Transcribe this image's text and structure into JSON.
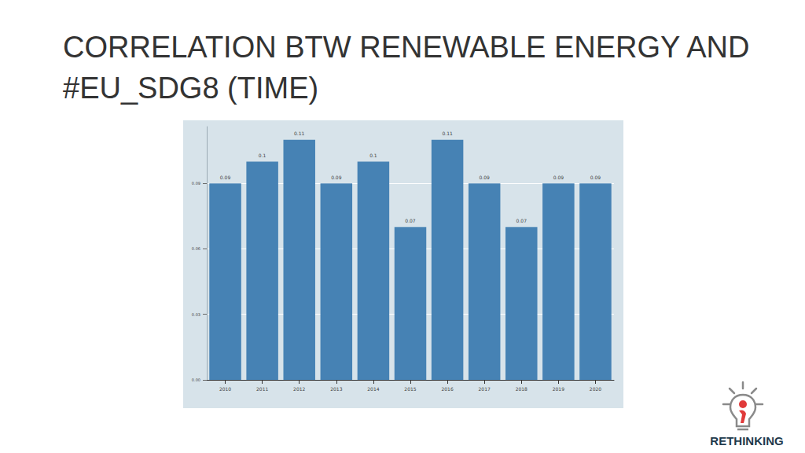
{
  "chart_data": {
    "type": "bar",
    "title": "CORRELATION BTW RENEWABLE ENERGY AND #EU_SDG8 (TIME)",
    "categories": [
      "2010",
      "2011",
      "2012",
      "2013",
      "2014",
      "2015",
      "2016",
      "2017",
      "2018",
      "2019",
      "2020"
    ],
    "values": [
      0.09,
      0.1,
      0.11,
      0.09,
      0.1,
      0.07,
      0.11,
      0.09,
      0.07,
      0.09,
      0.09
    ],
    "color": "#4682b4",
    "ylim": [
      0,
      0.116
    ],
    "yticks": [
      {
        "value": 0,
        "label": "0.00"
      },
      {
        "value": 0.03,
        "label": "0.03"
      },
      {
        "value": 0.06,
        "label": "0.06"
      },
      {
        "value": 0.09,
        "label": "0.09"
      }
    ],
    "grid": true,
    "data_labels": true
  },
  "logo": "RETHINKING"
}
